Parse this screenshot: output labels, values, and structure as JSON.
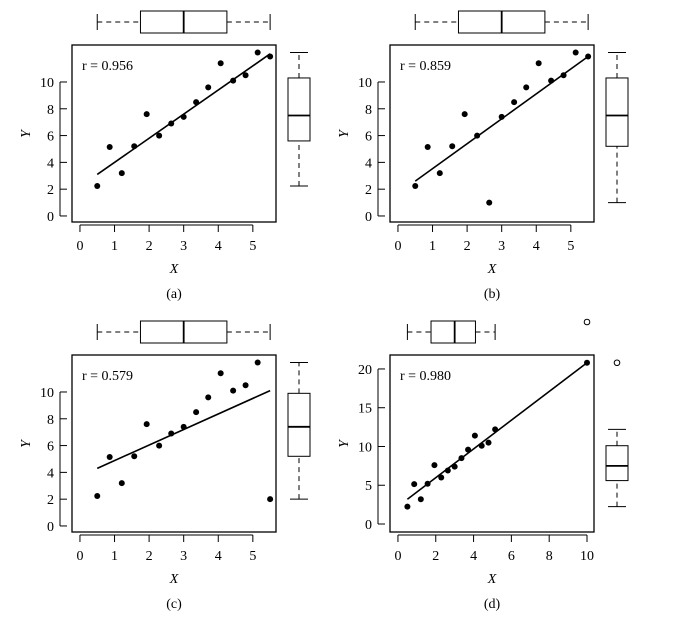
{
  "chart_data": [
    {
      "type": "scatter",
      "caption": "(a)",
      "annotation": "r = 0.956",
      "xlabel": "X",
      "ylabel": "Y",
      "xlim": [
        -0.23,
        5.67
      ],
      "ylim": [
        -0.45,
        12.76
      ],
      "xticks": [
        0,
        1,
        2,
        3,
        4,
        5
      ],
      "yticks": [
        0,
        2,
        4,
        6,
        8,
        10
      ],
      "x": [
        0.5,
        0.86,
        1.21,
        1.57,
        1.93,
        2.29,
        2.64,
        3.0,
        3.36,
        3.71,
        4.07,
        4.43,
        4.79,
        5.14,
        5.5
      ],
      "y": [
        2.24,
        5.15,
        3.2,
        5.2,
        7.6,
        6.0,
        6.9,
        7.4,
        8.5,
        9.6,
        11.4,
        10.1,
        10.5,
        12.2,
        11.9
      ],
      "fit_line": [
        [
          0.5,
          3.1
        ],
        [
          5.5,
          12.1
        ]
      ],
      "x_boxplot": {
        "whiskers": [
          0.5,
          5.5
        ],
        "box": [
          1.75,
          4.25
        ],
        "median": 3.0,
        "outliers": []
      },
      "y_boxplot": {
        "whiskers": [
          2.24,
          12.2
        ],
        "box": [
          5.6,
          10.3
        ],
        "median": 7.5,
        "outliers": []
      }
    },
    {
      "type": "scatter",
      "caption": "(b)",
      "annotation": "r = 0.859",
      "xlabel": "X",
      "ylabel": "Y",
      "xlim": [
        -0.23,
        5.67
      ],
      "ylim": [
        -0.45,
        12.76
      ],
      "xticks": [
        0,
        1,
        2,
        3,
        4,
        5
      ],
      "yticks": [
        0,
        2,
        4,
        6,
        8,
        10
      ],
      "x": [
        0.5,
        0.86,
        1.21,
        1.57,
        1.93,
        2.29,
        2.64,
        3.0,
        3.36,
        3.71,
        4.07,
        4.43,
        4.79,
        5.14,
        5.5
      ],
      "y": [
        2.24,
        5.15,
        3.2,
        5.2,
        7.6,
        6.0,
        1.0,
        7.4,
        8.5,
        9.6,
        11.4,
        10.1,
        10.5,
        12.2,
        11.9
      ],
      "fit_line": [
        [
          0.5,
          2.6
        ],
        [
          5.5,
          11.9
        ]
      ],
      "x_boxplot": {
        "whiskers": [
          0.5,
          5.5
        ],
        "box": [
          1.75,
          4.25
        ],
        "median": 3.0,
        "outliers": []
      },
      "y_boxplot": {
        "whiskers": [
          1.0,
          12.2
        ],
        "box": [
          5.2,
          10.3
        ],
        "median": 7.5,
        "outliers": []
      }
    },
    {
      "type": "scatter",
      "caption": "(c)",
      "annotation": "r = 0.579",
      "xlabel": "X",
      "ylabel": "Y",
      "xlim": [
        -0.23,
        5.67
      ],
      "ylim": [
        -0.45,
        12.76
      ],
      "xticks": [
        0,
        1,
        2,
        3,
        4,
        5
      ],
      "yticks": [
        0,
        2,
        4,
        6,
        8,
        10
      ],
      "x": [
        0.5,
        0.86,
        1.21,
        1.57,
        1.93,
        2.29,
        2.64,
        3.0,
        3.36,
        3.71,
        4.07,
        4.43,
        4.79,
        5.14,
        5.5
      ],
      "y": [
        2.24,
        5.15,
        3.2,
        5.2,
        7.6,
        6.0,
        6.9,
        7.4,
        8.5,
        9.6,
        11.4,
        10.1,
        10.5,
        12.2,
        2.0
      ],
      "fit_line": [
        [
          0.5,
          4.3
        ],
        [
          5.5,
          10.1
        ]
      ],
      "x_boxplot": {
        "whiskers": [
          0.5,
          5.5
        ],
        "box": [
          1.75,
          4.25
        ],
        "median": 3.0,
        "outliers": []
      },
      "y_boxplot": {
        "whiskers": [
          2.0,
          12.2
        ],
        "box": [
          5.2,
          9.9
        ],
        "median": 7.4,
        "outliers": []
      }
    },
    {
      "type": "scatter",
      "caption": "(d)",
      "annotation": "r = 0.980",
      "xlabel": "X",
      "ylabel": "Y",
      "xlim": [
        -0.42,
        10.37
      ],
      "ylim": [
        -1.03,
        21.8
      ],
      "xticks": [
        0,
        2,
        4,
        6,
        8,
        10
      ],
      "yticks": [
        0,
        5,
        10,
        15,
        20
      ],
      "x": [
        0.5,
        0.86,
        1.21,
        1.57,
        1.93,
        2.29,
        2.64,
        3.0,
        3.36,
        3.71,
        4.07,
        4.43,
        4.79,
        5.14,
        10.0
      ],
      "y": [
        2.24,
        5.15,
        3.2,
        5.2,
        7.6,
        6.0,
        6.9,
        7.4,
        8.5,
        9.6,
        11.4,
        10.1,
        10.5,
        12.2,
        20.8
      ],
      "fit_line": [
        [
          0.5,
          3.2
        ],
        [
          10.0,
          20.8
        ]
      ],
      "x_boxplot": {
        "whiskers": [
          0.5,
          5.14
        ],
        "box": [
          1.75,
          4.1
        ],
        "median": 3.0,
        "outliers": [
          10.0
        ]
      },
      "y_boxplot": {
        "whiskers": [
          2.24,
          12.2
        ],
        "box": [
          5.6,
          10.1
        ],
        "median": 7.5,
        "outliers": [
          20.8
        ]
      }
    }
  ]
}
